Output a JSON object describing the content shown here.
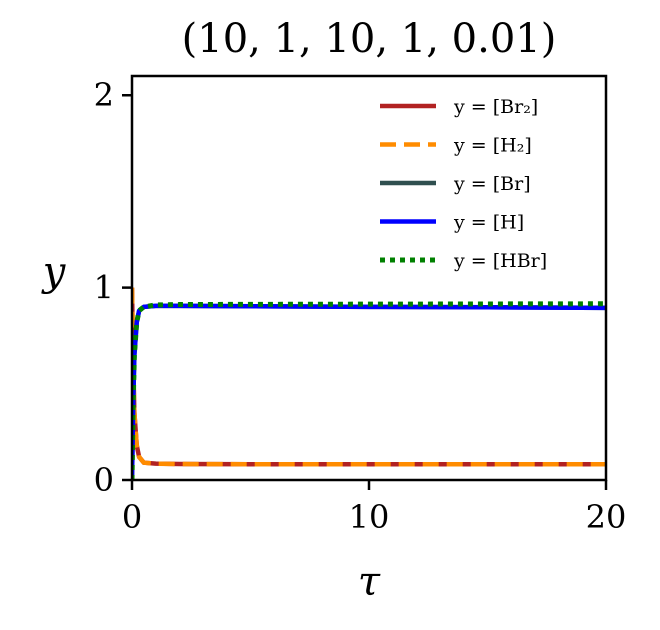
{
  "chart_data": {
    "type": "line",
    "title": "(10, 1, 10, 1, 0.01)",
    "xlabel": "τ",
    "ylabel": "y",
    "xlim": [
      0,
      20
    ],
    "ylim": [
      0,
      2.1
    ],
    "xticks": [
      0,
      10,
      20
    ],
    "yticks": [
      0,
      1,
      2
    ],
    "grid": false,
    "legend_position": "top-right",
    "series": [
      {
        "name": "y = [Br₂]",
        "color": "#b22222",
        "style": "solid",
        "x": [
          0,
          0.05,
          0.1,
          0.2,
          0.3,
          0.5,
          1,
          2,
          5,
          10,
          15,
          20
        ],
        "y": [
          1.0,
          0.6,
          0.35,
          0.18,
          0.12,
          0.09,
          0.085,
          0.083,
          0.082,
          0.082,
          0.082,
          0.082
        ]
      },
      {
        "name": "y = [H₂]",
        "color": "#ff8c00",
        "style": "dashed",
        "x": [
          0,
          0.05,
          0.1,
          0.2,
          0.3,
          0.5,
          1,
          2,
          5,
          10,
          15,
          20
        ],
        "y": [
          1.0,
          0.6,
          0.35,
          0.18,
          0.12,
          0.09,
          0.085,
          0.083,
          0.082,
          0.082,
          0.082,
          0.082
        ]
      },
      {
        "name": "y = [Br]",
        "color": "#2f4f4f",
        "style": "solid",
        "x": [
          0,
          0.05,
          0.1,
          0.2,
          0.3,
          0.5,
          1,
          2,
          5,
          10,
          15,
          20
        ],
        "y": [
          0,
          0.4,
          0.65,
          0.82,
          0.88,
          0.9,
          0.905,
          0.905,
          0.903,
          0.9,
          0.898,
          0.895
        ]
      },
      {
        "name": "y = [H]",
        "color": "#0000ff",
        "style": "solid",
        "x": [
          0,
          0.05,
          0.1,
          0.2,
          0.3,
          0.5,
          1,
          2,
          5,
          10,
          15,
          20
        ],
        "y": [
          0,
          0.4,
          0.65,
          0.82,
          0.88,
          0.9,
          0.905,
          0.905,
          0.903,
          0.9,
          0.898,
          0.895
        ]
      },
      {
        "name": "y = [HBr]",
        "color": "#008000",
        "style": "dotted",
        "x": [
          0,
          0.05,
          0.1,
          0.2,
          0.3,
          0.5,
          1,
          2,
          5,
          10,
          15,
          20
        ],
        "y": [
          0,
          0.4,
          0.65,
          0.82,
          0.88,
          0.9,
          0.91,
          0.912,
          0.913,
          0.914,
          0.915,
          0.916
        ]
      }
    ]
  }
}
